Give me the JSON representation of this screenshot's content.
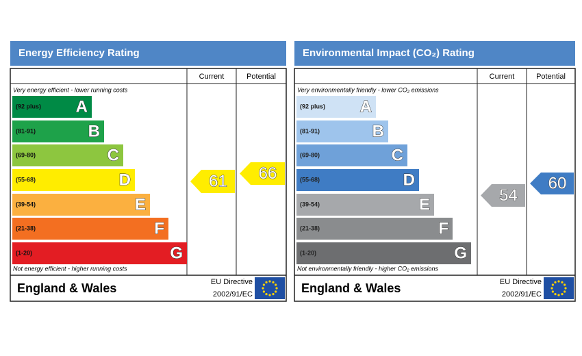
{
  "panels": [
    {
      "title": "Energy Efficiency Rating",
      "columns": [
        "Current",
        "Potential"
      ],
      "top_note": "Very energy efficient - lower running costs",
      "bottom_note": "Not energy efficient - higher running costs",
      "bands": [
        {
          "range": "(92 plus)",
          "letter": "A",
          "color": "#008a45"
        },
        {
          "range": "(81-91)",
          "letter": "B",
          "color": "#1ea24a"
        },
        {
          "range": "(69-80)",
          "letter": "C",
          "color": "#8dc63f"
        },
        {
          "range": "(55-68)",
          "letter": "D",
          "color": "#ffed00"
        },
        {
          "range": "(39-54)",
          "letter": "E",
          "color": "#fbb040"
        },
        {
          "range": "(21-38)",
          "letter": "F",
          "color": "#f36f21"
        },
        {
          "range": "(1-20)",
          "letter": "G",
          "color": "#e31d23"
        }
      ],
      "current": {
        "value": "61",
        "color": "#ffed00"
      },
      "potential": {
        "value": "66",
        "color": "#ffed00"
      },
      "footer": {
        "region": "England & Wales",
        "directive": "EU Directive",
        "code": "2002/91/EC"
      }
    },
    {
      "title": "Environmental Impact (CO₂) Rating",
      "columns": [
        "Current",
        "Potential"
      ],
      "top_note": "Very environmentally friendly - lower CO₂ emissions",
      "bottom_note": "Not environmentally friendly - higher CO₂ emissions",
      "bands": [
        {
          "range": "(92 plus)",
          "letter": "A",
          "color": "#cfe2f5"
        },
        {
          "range": "(81-91)",
          "letter": "B",
          "color": "#9ec4ec"
        },
        {
          "range": "(69-80)",
          "letter": "C",
          "color": "#6fa1d9"
        },
        {
          "range": "(55-68)",
          "letter": "D",
          "color": "#3f7cc4"
        },
        {
          "range": "(39-54)",
          "letter": "E",
          "color": "#a6a8ab"
        },
        {
          "range": "(21-38)",
          "letter": "F",
          "color": "#8a8c8e"
        },
        {
          "range": "(1-20)",
          "letter": "G",
          "color": "#6d6e70"
        }
      ],
      "current": {
        "value": "54",
        "color": "#a6a8ab"
      },
      "potential": {
        "value": "60",
        "color": "#3f7cc4"
      },
      "footer": {
        "region": "England & Wales",
        "directive": "EU Directive",
        "code": "2002/91/EC"
      }
    }
  ]
}
